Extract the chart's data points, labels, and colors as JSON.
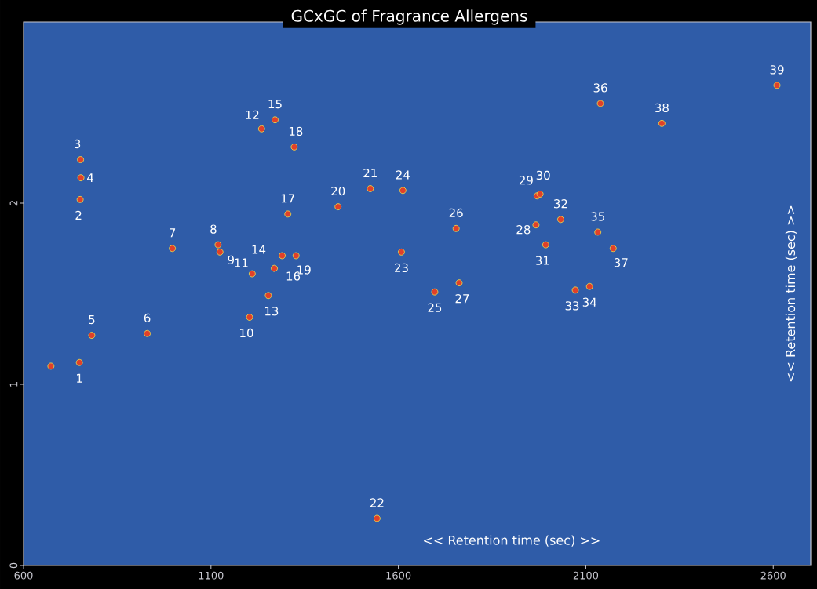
{
  "chart_data": {
    "type": "scatter",
    "title": "GCxGC of Fragrance Allergens",
    "xlabel": "<< Retention time (sec) >>",
    "ylabel": "<< Retention time (sec) >>",
    "x": [
      673,
      749,
      751,
      752,
      753,
      782,
      930,
      997,
      1119,
      1124,
      1203,
      1210,
      1235,
      1253,
      1269,
      1271,
      1290,
      1305,
      1322,
      1327,
      1439,
      1525,
      1543,
      1608,
      1612,
      1697,
      1754,
      1762,
      1967,
      1970,
      1978,
      1993,
      2033,
      2072,
      2110,
      2132,
      2139,
      2173,
      2303,
      2610
    ],
    "values": [
      1.1,
      1.12,
      2.02,
      2.24,
      2.14,
      1.27,
      1.28,
      1.75,
      1.77,
      1.73,
      1.37,
      1.61,
      2.41,
      1.49,
      1.64,
      2.46,
      1.71,
      1.94,
      2.31,
      1.71,
      1.98,
      2.08,
      0.26,
      1.73,
      2.07,
      1.51,
      1.86,
      1.56,
      1.88,
      2.04,
      2.05,
      1.77,
      1.91,
      1.52,
      1.54,
      1.84,
      2.55,
      1.75,
      2.44,
      2.65
    ],
    "color": "#e0402a",
    "marker": "circle",
    "xlim": [
      600,
      2700
    ],
    "ylim": [
      0,
      3.0
    ],
    "xticks": [
      600,
      1100,
      1600,
      2100,
      2600
    ],
    "yticks": [
      0,
      1,
      2
    ],
    "grid": false,
    "annotations": [
      {
        "text": "1",
        "x": 749,
        "y": 1.12
      },
      {
        "text": "2",
        "x": 751,
        "y": 2.02
      },
      {
        "text": "3",
        "x": 752,
        "y": 2.24
      },
      {
        "text": "4",
        "x": 753,
        "y": 2.14
      },
      {
        "text": "5",
        "x": 782,
        "y": 1.27
      },
      {
        "text": "6",
        "x": 930,
        "y": 1.28
      },
      {
        "text": "7",
        "x": 997,
        "y": 1.75
      },
      {
        "text": "8",
        "x": 1119,
        "y": 1.77
      },
      {
        "text": "9",
        "x": 1124,
        "y": 1.73
      },
      {
        "text": "10",
        "x": 1203,
        "y": 1.37
      },
      {
        "text": "11",
        "x": 1210,
        "y": 1.61
      },
      {
        "text": "12",
        "x": 1235,
        "y": 2.41
      },
      {
        "text": "13",
        "x": 1253,
        "y": 1.49
      },
      {
        "text": "14",
        "x": 1269,
        "y": 1.64
      },
      {
        "text": "15",
        "x": 1271,
        "y": 2.46
      },
      {
        "text": "16",
        "x": 1290,
        "y": 1.71
      },
      {
        "text": "17",
        "x": 1305,
        "y": 1.94
      },
      {
        "text": "18",
        "x": 1322,
        "y": 2.31
      },
      {
        "text": "19",
        "x": 1327,
        "y": 1.71
      },
      {
        "text": "20",
        "x": 1439,
        "y": 1.98
      },
      {
        "text": "21",
        "x": 1525,
        "y": 2.08
      },
      {
        "text": "22",
        "x": 1543,
        "y": 0.26
      },
      {
        "text": "23",
        "x": 1608,
        "y": 1.73
      },
      {
        "text": "24",
        "x": 1612,
        "y": 2.07
      },
      {
        "text": "25",
        "x": 1697,
        "y": 1.51
      },
      {
        "text": "26",
        "x": 1754,
        "y": 1.86
      },
      {
        "text": "27",
        "x": 1762,
        "y": 1.56
      },
      {
        "text": "28",
        "x": 1967,
        "y": 1.88
      },
      {
        "text": "29",
        "x": 1970,
        "y": 2.04
      },
      {
        "text": "30",
        "x": 1978,
        "y": 2.05
      },
      {
        "text": "31",
        "x": 1993,
        "y": 1.77
      },
      {
        "text": "32",
        "x": 2033,
        "y": 1.91
      },
      {
        "text": "33",
        "x": 2072,
        "y": 1.52
      },
      {
        "text": "34",
        "x": 2110,
        "y": 1.54
      },
      {
        "text": "35",
        "x": 2132,
        "y": 1.84
      },
      {
        "text": "36",
        "x": 2139,
        "y": 2.55
      },
      {
        "text": "37",
        "x": 2173,
        "y": 1.75
      },
      {
        "text": "38",
        "x": 2303,
        "y": 2.44
      },
      {
        "text": "39",
        "x": 2610,
        "y": 2.65
      }
    ]
  }
}
